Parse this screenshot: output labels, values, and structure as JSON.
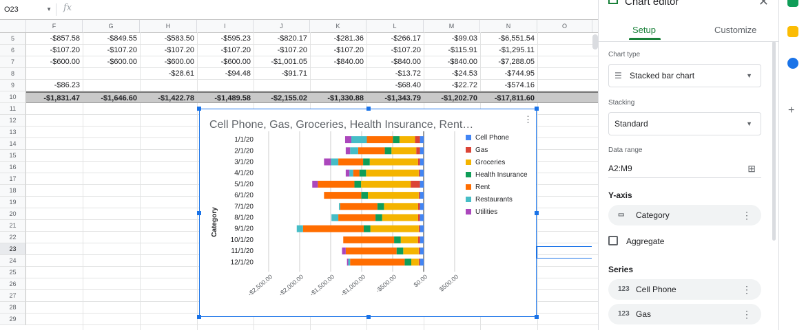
{
  "formula_bar": {
    "cell_ref": "O23",
    "fx": "fx"
  },
  "columns": [
    "F",
    "G",
    "H",
    "I",
    "J",
    "K",
    "L",
    "M",
    "N",
    "O"
  ],
  "rows": [
    {
      "num": "5",
      "cells": [
        "-$857.58",
        "-$849.55",
        "-$583.50",
        "-$595.23",
        "-$820.17",
        "-$281.36",
        "-$266.17",
        "-$99.03",
        "-$6,551.54",
        ""
      ]
    },
    {
      "num": "6",
      "cells": [
        "-$107.20",
        "-$107.20",
        "-$107.20",
        "-$107.20",
        "-$107.20",
        "-$107.20",
        "-$107.20",
        "-$115.91",
        "-$1,295.11",
        ""
      ]
    },
    {
      "num": "7",
      "cells": [
        "-$600.00",
        "-$600.00",
        "-$600.00",
        "-$600.00",
        "-$1,001.05",
        "-$840.00",
        "-$840.00",
        "-$840.00",
        "-$7,288.05",
        ""
      ]
    },
    {
      "num": "8",
      "cells": [
        "",
        "",
        "-$28.61",
        "-$94.48",
        "-$91.71",
        "",
        "-$13.72",
        "-$24.53",
        "-$744.95",
        ""
      ]
    },
    {
      "num": "9",
      "cells": [
        "-$86.23",
        "",
        "",
        "",
        "",
        "",
        "-$68.40",
        "-$22.72",
        "-$574.16",
        ""
      ]
    },
    {
      "num": "10",
      "cells": [
        "-$1,831.47",
        "-$1,646.60",
        "-$1,422.78",
        "-$1,489.58",
        "-$2,155.02",
        "-$1,330.88",
        "-$1,343.79",
        "-$1,202.70",
        "-$17,811.60",
        ""
      ],
      "total": true
    }
  ],
  "empty_rows": [
    "11",
    "12",
    "13",
    "14",
    "15",
    "16",
    "17",
    "18",
    "19",
    "20",
    "21",
    "22",
    "23",
    "24",
    "25",
    "26",
    "27",
    "28",
    "29"
  ],
  "selected_row": "23",
  "chart_data": {
    "type": "bar",
    "orientation": "horizontal",
    "stacking": "standard",
    "title": "Cell Phone, Gas, Groceries, Health Insurance, Rent…",
    "ylabel": "Category",
    "categories": [
      "1/1/20",
      "2/1/20",
      "3/1/20",
      "4/1/20",
      "5/1/20",
      "6/1/20",
      "7/1/20",
      "8/1/20",
      "9/1/20",
      "10/1/20",
      "11/1/20",
      "12/1/20"
    ],
    "xlim": [
      -2500,
      500
    ],
    "xticks": [
      "-$2,500.00",
      "-$2,000.00",
      "-$1,500.00",
      "-$1,000.00",
      "-$500.00",
      "$0.00",
      "$500.00"
    ],
    "xtick_values": [
      -2500,
      -2000,
      -1500,
      -1000,
      -500,
      0,
      500
    ],
    "legend_position": "right",
    "series": [
      {
        "name": "Cell Phone",
        "color": "#4285f4",
        "values": [
          -60,
          -60,
          -60,
          -60,
          -60,
          -60,
          -60,
          -60,
          -60,
          -60,
          -60,
          -60
        ]
      },
      {
        "name": "Gas",
        "color": "#db4437",
        "values": [
          -80,
          -60,
          -30,
          -20,
          -150,
          -20,
          -30,
          -30,
          -20,
          -30,
          -20,
          -20
        ]
      },
      {
        "name": "Groceries",
        "color": "#f4b400",
        "values": [
          -250,
          -400,
          -780,
          -850,
          -800,
          -820,
          -550,
          -580,
          -780,
          -280,
          -250,
          -120
        ]
      },
      {
        "name": "Health Insurance",
        "color": "#0f9d58",
        "values": [
          -107,
          -107,
          -107,
          -107,
          -107,
          -107,
          -107,
          -107,
          -107,
          -107,
          -107,
          -107
        ]
      },
      {
        "name": "Rent",
        "color": "#ff6d00",
        "values": [
          -420,
          -430,
          -400,
          -100,
          -590,
          -600,
          -600,
          -600,
          -980,
          -820,
          -820,
          -880
        ]
      },
      {
        "name": "Restaurants",
        "color": "#46bdc6",
        "values": [
          -250,
          -130,
          -120,
          -60,
          0,
          0,
          -20,
          -110,
          -100,
          0,
          0,
          -30
        ]
      },
      {
        "name": "Utilities",
        "color": "#ab47bc",
        "values": [
          -100,
          -70,
          -110,
          -60,
          -90,
          0,
          0,
          0,
          0,
          0,
          -60,
          -20
        ]
      }
    ]
  },
  "editor": {
    "title": "Chart editor",
    "tabs": [
      "Setup",
      "Customize"
    ],
    "chart_type_label": "Chart type",
    "chart_type_value": "Stacked bar chart",
    "stacking_label": "Stacking",
    "stacking_value": "Standard",
    "data_range_label": "Data range",
    "data_range_value": "A2:M9",
    "yaxis_label": "Y-axis",
    "yaxis_chip": "Category",
    "aggregate_label": "Aggregate",
    "series_label": "Series",
    "series_chips": [
      {
        "icon": "123",
        "label": "Cell Phone"
      },
      {
        "icon": "123",
        "label": "Gas"
      }
    ]
  },
  "colors": {
    "accent": "#1a73e8",
    "editor_green": "#188038"
  }
}
